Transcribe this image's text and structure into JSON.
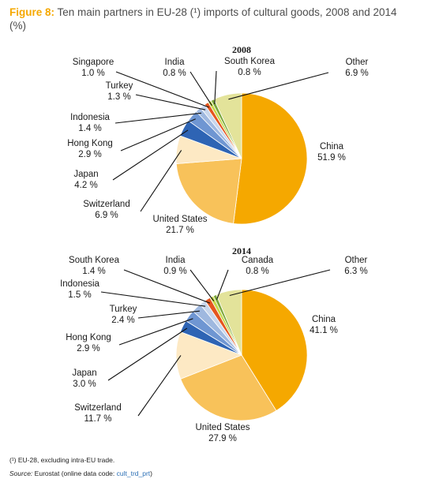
{
  "title": {
    "lead": "Figure 8:",
    "text": "Ten main partners in EU-28 (¹) imports of cultural goods, 2008 and 2014",
    "unit": "(%)"
  },
  "footnotes": {
    "note": "(¹) EU-28, excluding intra-EU trade.",
    "source_label": "Source:",
    "source_text": "Eurostat (online data code:",
    "source_code": "cult_trd_prt",
    "source_close": ")"
  },
  "chart_data": [
    {
      "type": "pie",
      "title": "2008",
      "slices": [
        {
          "label": "China",
          "value": 51.9,
          "display": "51.9 %",
          "color": "#f5a800"
        },
        {
          "label": "United States",
          "value": 21.7,
          "display": "21.7 %",
          "color": "#f8c25a"
        },
        {
          "label": "Switzerland",
          "value": 6.9,
          "display": "6.9 %",
          "color": "#fde9c4"
        },
        {
          "label": "Japan",
          "value": 4.2,
          "display": "4.2 %",
          "color": "#2e64b4"
        },
        {
          "label": "Hong Kong",
          "value": 2.9,
          "display": "2.9 %",
          "color": "#6f96d2"
        },
        {
          "label": "Indonesia",
          "value": 1.4,
          "display": "1.4 %",
          "color": "#9fb8df"
        },
        {
          "label": "Turkey",
          "value": 1.3,
          "display": "1.3 %",
          "color": "#c8d6ec"
        },
        {
          "label": "Singapore",
          "value": 1.0,
          "display": "1.0 %",
          "color": "#e5561f"
        },
        {
          "label": "India",
          "value": 0.8,
          "display": "0.8 %",
          "color": "#c6d94a"
        },
        {
          "label": "South Korea",
          "value": 0.8,
          "display": "0.8 %",
          "color": "#7ba73a"
        },
        {
          "label": "Other",
          "value": 6.9,
          "display": "6.9 %",
          "color": "#e3e39a"
        }
      ]
    },
    {
      "type": "pie",
      "title": "2014",
      "slices": [
        {
          "label": "China",
          "value": 41.1,
          "display": "41.1 %",
          "color": "#f5a800"
        },
        {
          "label": "United States",
          "value": 27.9,
          "display": "27.9 %",
          "color": "#f8c25a"
        },
        {
          "label": "Switzerland",
          "value": 11.7,
          "display": "11.7 %",
          "color": "#fde9c4"
        },
        {
          "label": "Japan",
          "value": 3.0,
          "display": "3.0 %",
          "color": "#2e64b4"
        },
        {
          "label": "Hong Kong",
          "value": 2.9,
          "display": "2.9 %",
          "color": "#6f96d2"
        },
        {
          "label": "Turkey",
          "value": 2.4,
          "display": "2.4 %",
          "color": "#9fb8df"
        },
        {
          "label": "Indonesia",
          "value": 1.5,
          "display": "1.5 %",
          "color": "#c8d6ec"
        },
        {
          "label": "South Korea",
          "value": 1.4,
          "display": "1.4 %",
          "color": "#e5561f"
        },
        {
          "label": "India",
          "value": 0.9,
          "display": "0.9 %",
          "color": "#c6d94a"
        },
        {
          "label": "Canada",
          "value": 0.8,
          "display": "0.8 %",
          "color": "#7ba73a"
        },
        {
          "label": "Other",
          "value": 6.3,
          "display": "6.3 %",
          "color": "#e3e39a"
        }
      ]
    }
  ]
}
